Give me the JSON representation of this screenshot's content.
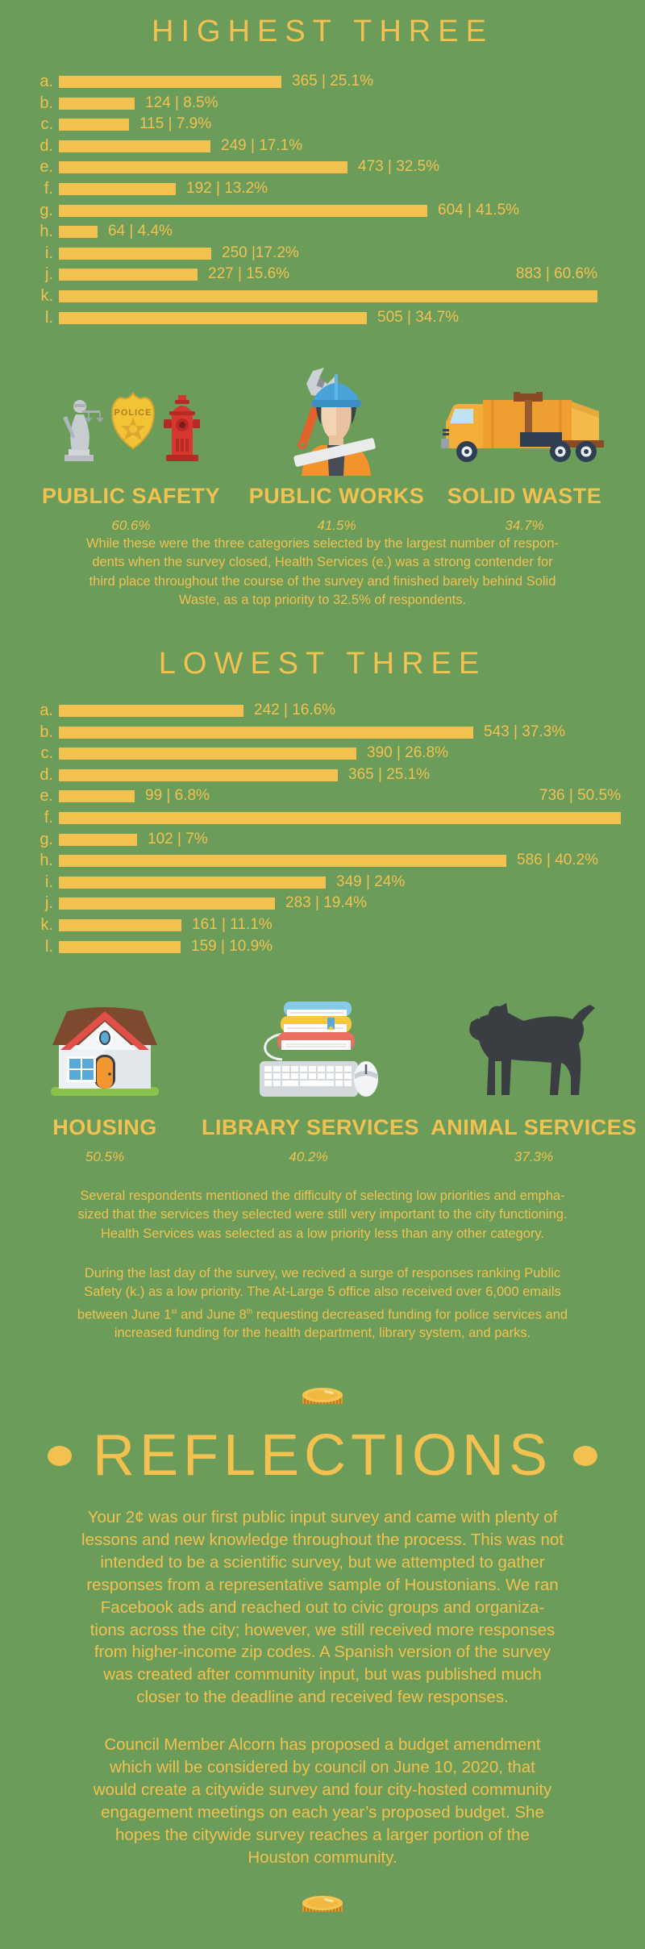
{
  "colors": {
    "background": "#6b9c5a",
    "accent_yellow": "#f2c150",
    "hydrant_red": "#d8372f",
    "helmet_blue": "#4aa3d8",
    "truck_orange": "#ef9f30",
    "dog_dark": "#3a3d42"
  },
  "icons": {
    "police_badge_text": "POLICE",
    "highest_icons": [
      "justice-statue-icon",
      "police-badge-icon",
      "fire-hydrant-icon",
      "construction-worker-icon",
      "garbage-truck-icon"
    ],
    "lowest_icons": [
      "house-icon",
      "books-keyboard-mouse-icon",
      "dog-icon"
    ],
    "decor_icons": [
      "coin-icon",
      "coin-icon"
    ]
  },
  "chart_data": [
    {
      "type": "bar",
      "title": "HIGHEST THREE",
      "xlabel": "",
      "ylabel": "",
      "max_value": 883,
      "legend": "none",
      "rows": [
        {
          "label": "a.",
          "count": 365,
          "pct": 25.1,
          "display": "365 | 25.1%"
        },
        {
          "label": "b.",
          "count": 124,
          "pct": 8.5,
          "display": "124 | 8.5%"
        },
        {
          "label": "c.",
          "count": 115,
          "pct": 7.9,
          "display": "115 | 7.9%"
        },
        {
          "label": "d.",
          "count": 249,
          "pct": 17.1,
          "display": "249 | 17.1%"
        },
        {
          "label": "e.",
          "count": 473,
          "pct": 32.5,
          "display": "473 | 32.5%"
        },
        {
          "label": "f.",
          "count": 192,
          "pct": 13.2,
          "display": "192 | 13.2%"
        },
        {
          "label": "g.",
          "count": 604,
          "pct": 41.5,
          "display": "604 | 41.5%"
        },
        {
          "label": "h.",
          "count": 64,
          "pct": 4.4,
          "display": "64 | 4.4%"
        },
        {
          "label": "i.",
          "count": 250,
          "pct": 17.2,
          "display": "250 |17.2%"
        },
        {
          "label": "j.",
          "count": 227,
          "pct": 15.6,
          "display": "227 | 15.6%"
        },
        {
          "label": "k.",
          "count": 883,
          "pct": 60.6,
          "display": "883 | 60.6%",
          "label_above": true
        },
        {
          "label": "l.",
          "count": 505,
          "pct": 34.7,
          "display": "505 | 34.7%"
        }
      ]
    },
    {
      "type": "bar",
      "title": "LOWEST THREE",
      "xlabel": "",
      "ylabel": "",
      "max_value": 736,
      "legend": "none",
      "rows": [
        {
          "label": "a.",
          "count": 242,
          "pct": 16.6,
          "display": "242 | 16.6%"
        },
        {
          "label": "b.",
          "count": 543,
          "pct": 37.3,
          "display": "543 | 37.3%"
        },
        {
          "label": "c.",
          "count": 390,
          "pct": 26.8,
          "display": "390 | 26.8%"
        },
        {
          "label": "d.",
          "count": 365,
          "pct": 25.1,
          "display": "365 | 25.1%"
        },
        {
          "label": "e.",
          "count": 99,
          "pct": 6.8,
          "display": "99 | 6.8%"
        },
        {
          "label": "f.",
          "count": 736,
          "pct": 50.5,
          "display": "736 | 50.5%",
          "label_above": true
        },
        {
          "label": "g.",
          "count": 102,
          "pct": 7.0,
          "display": "102 | 7%"
        },
        {
          "label": "h.",
          "count": 586,
          "pct": 40.2,
          "display": "586 | 40.2%"
        },
        {
          "label": "i.",
          "count": 349,
          "pct": 24.0,
          "display": "349 | 24%"
        },
        {
          "label": "j.",
          "count": 283,
          "pct": 19.4,
          "display": "283 | 19.4%"
        },
        {
          "label": "k.",
          "count": 161,
          "pct": 11.1,
          "display": "161 | 11.1%"
        },
        {
          "label": "l.",
          "count": 159,
          "pct": 10.9,
          "display": "159 | 10.9%"
        }
      ]
    }
  ],
  "summary_highest": [
    {
      "name": "PUBLIC SAFETY",
      "pct": "60.6%"
    },
    {
      "name": "PUBLIC WORKS",
      "pct": "41.5%"
    },
    {
      "name": "SOLID WASTE",
      "pct": "34.7%"
    }
  ],
  "summary_lowest": [
    {
      "name": "HOUSING",
      "pct": "50.5%"
    },
    {
      "name": "LIBRARY SERVICES",
      "pct": "40.2%"
    },
    {
      "name": "ANIMAL SERVICES",
      "pct": "37.3%"
    }
  ],
  "notes": {
    "highest_lines": [
      "While these were the three categories selected by the largest number of respon-",
      "dents when the survey closed, Health Services (e.) was a strong contender for",
      "third place throughout the course of the survey and finished barely behind Solid",
      "Waste, as a top priority to 32.5% of respondents."
    ],
    "lowest1_lines": [
      "Several respondents mentioned the difficulty of selecting low priorities and empha-",
      "sized that the services they selected were still very important to the city functioning.",
      "Health Services was selected as a low priority less than any other category."
    ],
    "lowest2_lines": [
      [
        {
          "t": "During the last day of the survey, we recived a surge of responses ranking Public"
        }
      ],
      [
        {
          "t": "Safety (k.) as a low priority. The At-Large 5 office also received over 6,000 emails"
        }
      ],
      [
        {
          "t": "between June 1"
        },
        {
          "t": "st",
          "sup": true
        },
        {
          "t": " and June 8"
        },
        {
          "t": "th",
          "sup": true
        },
        {
          "t": " requesting decreased funding for police services and"
        }
      ],
      [
        {
          "t": "increased funding for the health department, library system, and parks."
        }
      ]
    ]
  },
  "reflections": {
    "title": "REFLECTIONS",
    "p1_lines": [
      "Your 2¢ was our first public input survey and came with plenty of",
      "lessons and new knowledge throughout the process. This was not",
      "intended to be a scientific survey, but we attempted to gather",
      "responses from a representative sample of Houstonians. We ran",
      "Facebook ads and reached out to civic groups and organiza-",
      "tions across the city; however, we still received more responses",
      "from higher-income zip codes. A Spanish version of the survey",
      "was created after community input, but was published much",
      "closer to the deadline and received few responses."
    ],
    "p2_lines": [
      "Council Member Alcorn has proposed a budget amendment",
      "which will be considered by council on June 10, 2020, that",
      "would create a citywide survey and four city-hosted community",
      "engagement meetings on each year’s proposed budget. She",
      "hopes the citywide survey reaches a larger portion of the",
      "Houston community."
    ]
  }
}
